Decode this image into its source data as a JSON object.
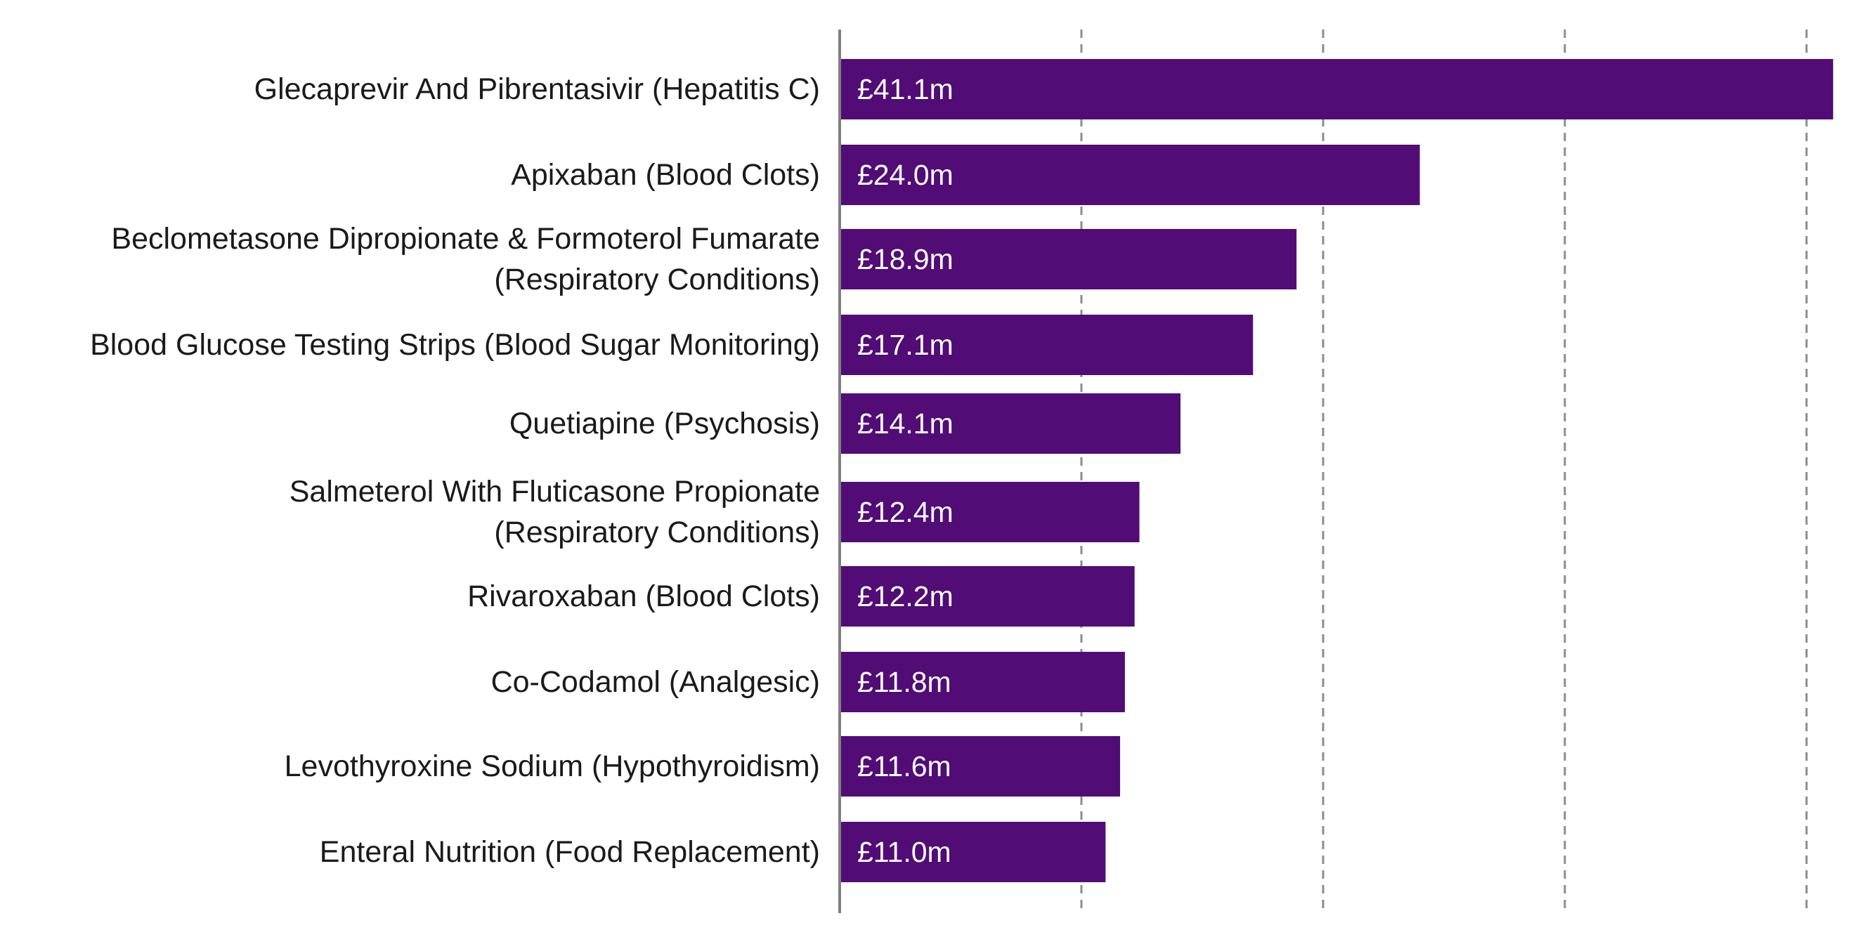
{
  "chart_data": {
    "type": "bar",
    "orientation": "horizontal",
    "title": "",
    "xlabel": "",
    "ylabel": "",
    "categories": [
      [
        "Glecaprevir And Pibrentasivir (Hepatitis C)"
      ],
      [
        "Apixaban (Blood Clots)"
      ],
      [
        "Beclometasone Dipropionate & Formoterol Fumarate",
        "(Respiratory Conditions)"
      ],
      [
        "Blood Glucose Testing Strips (Blood Sugar Monitoring)"
      ],
      [
        "Quetiapine (Psychosis)"
      ],
      [
        "Salmeterol With Fluticasone Propionate",
        "(Respiratory Conditions)"
      ],
      [
        "Rivaroxaban (Blood Clots)"
      ],
      [
        "Co-Codamol (Analgesic)"
      ],
      [
        "Levothyroxine Sodium (Hypothyroidism)"
      ],
      [
        "Enteral Nutrition (Food Replacement)"
      ]
    ],
    "values": [
      41.1,
      24.0,
      18.9,
      17.1,
      14.1,
      12.4,
      12.2,
      11.8,
      11.6,
      11.0
    ],
    "value_labels": [
      "£41.1m",
      "£24.0m",
      "£18.9m",
      "£17.1m",
      "£14.1m",
      "£12.4m",
      "£12.2m",
      "£11.8m",
      "£11.6m",
      "£11.0m"
    ],
    "xlim": [
      0,
      41.1
    ],
    "gridlines": [
      10,
      20,
      30,
      40
    ],
    "grid": true,
    "legend": "none",
    "colors": {
      "bar": "#510c76",
      "axis": "#808080",
      "grid": "#8c8c8c",
      "label_text": "#1a1a1a",
      "value_text": "#ffffff"
    }
  }
}
